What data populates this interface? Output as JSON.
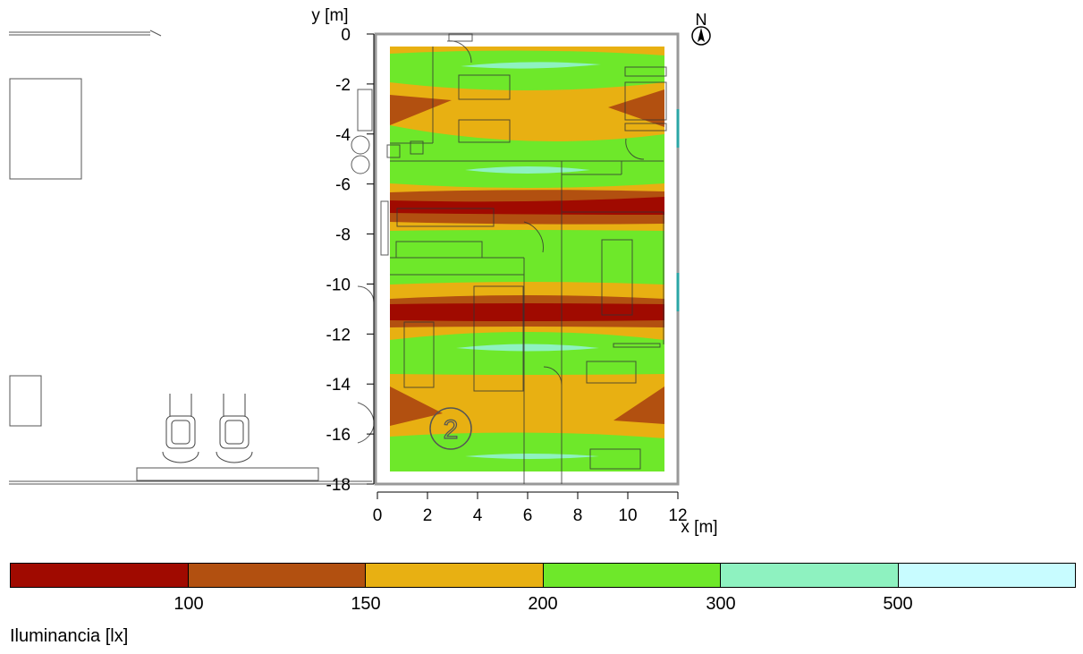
{
  "axes": {
    "y_label": "y [m]",
    "x_label": "x [m]",
    "y_ticks": [
      "0",
      "-2",
      "-4",
      "-6",
      "-8",
      "-10",
      "-12",
      "-14",
      "-16",
      "-18"
    ],
    "x_ticks": [
      "0",
      "2",
      "4",
      "6",
      "8",
      "10",
      "12"
    ]
  },
  "north_label": "N",
  "room_number": "2",
  "legend": {
    "title": "Iluminancia [lx]",
    "thresholds": [
      "100",
      "150",
      "200",
      "300",
      "500"
    ],
    "colors": [
      "#a00a00",
      "#b25010",
      "#e8b012",
      "#6ee82a",
      "#8ef2c0",
      "#c8fcff"
    ]
  },
  "iso_colors": {
    "band_lt100": "#a00a00",
    "band_100_150": "#b25010",
    "band_150_200": "#e8b012",
    "band_200_300": "#6ee82a",
    "band_300_500": "#8ef2c0",
    "band_gt500": "#c8fcff"
  }
}
